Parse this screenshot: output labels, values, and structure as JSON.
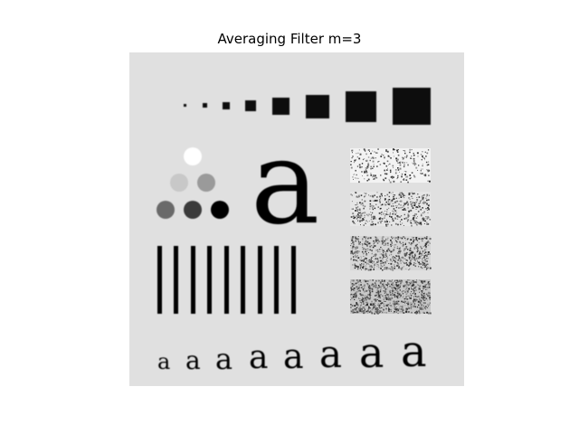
{
  "figure": {
    "title": "Averaging Filter m=3"
  },
  "image": {
    "description_colors": {
      "background": "#e0e0e0",
      "ink": "#000000",
      "circle_shades": [
        "#ffffff",
        "#c8c8c8",
        "#9a9a9a",
        "#6a6a6a",
        "#3a3a3a",
        "#050505"
      ]
    },
    "large_letter": "a",
    "small_letters": [
      "a",
      "a",
      "a",
      "a",
      "a",
      "a",
      "a",
      "a"
    ]
  }
}
